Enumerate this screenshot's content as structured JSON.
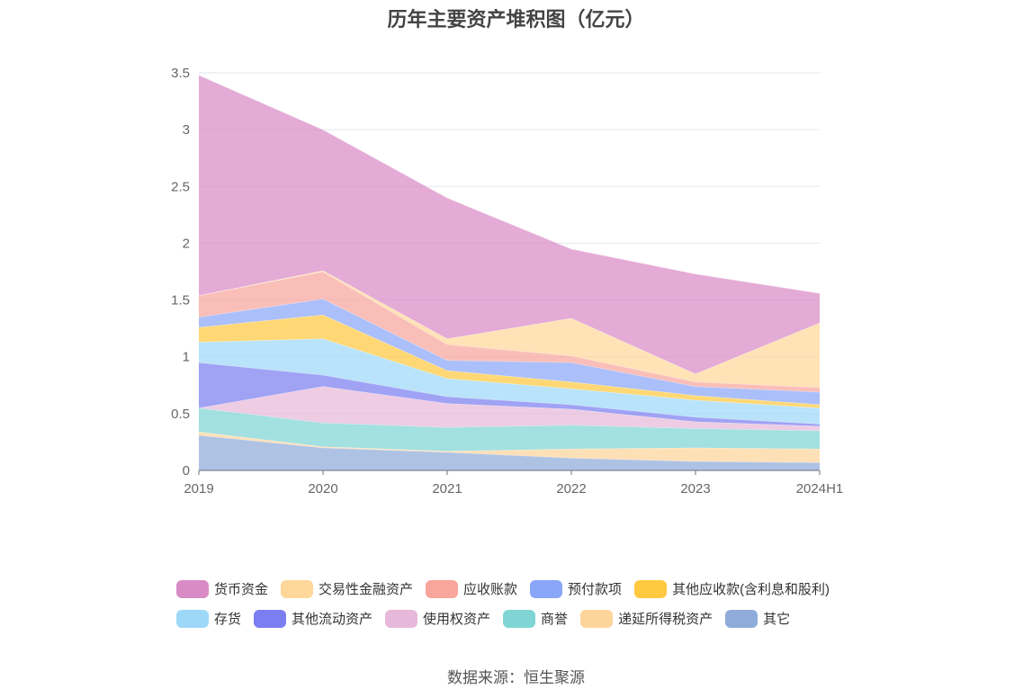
{
  "chart_data": {
    "type": "area",
    "stacked": true,
    "title": "历年主要资产堆积图（亿元）",
    "categories": [
      "2019",
      "2020",
      "2021",
      "2022",
      "2023",
      "2024H1"
    ],
    "ylim": [
      0,
      3.5
    ],
    "yticks": [
      "0",
      "0.5",
      "1",
      "1.5",
      "2",
      "2.5",
      "3",
      "3.5"
    ],
    "grid": true,
    "legend_position": "bottom",
    "series": [
      {
        "name": "其它",
        "color": "#8fabd9",
        "values": [
          0.31,
          0.2,
          0.16,
          0.11,
          0.08,
          0.07
        ]
      },
      {
        "name": "递延所得税资产",
        "color": "#fdd49a",
        "values": [
          0.03,
          0.01,
          0.01,
          0.08,
          0.12,
          0.12
        ]
      },
      {
        "name": "商誉",
        "color": "#7fd4d4",
        "values": [
          0.21,
          0.21,
          0.21,
          0.21,
          0.17,
          0.16
        ]
      },
      {
        "name": "使用权资产",
        "color": "#e6b9da",
        "values": [
          0.0,
          0.32,
          0.21,
          0.14,
          0.06,
          0.04
        ]
      },
      {
        "name": "其他流动资产",
        "color": "#7b7ef0",
        "values": [
          0.4,
          0.1,
          0.06,
          0.04,
          0.04,
          0.02
        ]
      },
      {
        "name": "存货",
        "color": "#9ed8f8",
        "values": [
          0.18,
          0.32,
          0.16,
          0.14,
          0.15,
          0.14
        ]
      },
      {
        "name": "其他应收款(含利息和股利)",
        "color": "#ffc940",
        "values": [
          0.13,
          0.21,
          0.07,
          0.06,
          0.04,
          0.03
        ]
      },
      {
        "name": "预付款项",
        "color": "#8aa6f8",
        "values": [
          0.09,
          0.14,
          0.09,
          0.17,
          0.08,
          0.11
        ]
      },
      {
        "name": "应收账款",
        "color": "#f8a59c",
        "values": [
          0.19,
          0.24,
          0.14,
          0.06,
          0.04,
          0.04
        ]
      },
      {
        "name": "交易性金融资产",
        "color": "#ffd79a",
        "values": [
          0.0,
          0.01,
          0.05,
          0.33,
          0.07,
          0.57
        ]
      },
      {
        "name": "货币资金",
        "color": "#d98bc6",
        "values": [
          1.94,
          1.24,
          1.24,
          0.61,
          0.88,
          0.26
        ]
      }
    ]
  },
  "legend": {
    "row1": [
      "货币资金",
      "交易性金融资产",
      "应收账款",
      "预付款项",
      "其他应收款(含利息和股利)"
    ],
    "row2": [
      "存货",
      "其他流动资产",
      "使用权资产",
      "商誉",
      "递延所得税资产",
      "其它"
    ],
    "colors": {
      "货币资金": "#d98bc6",
      "交易性金融资产": "#ffd79a",
      "应收账款": "#f8a59c",
      "预付款项": "#8aa6f8",
      "其他应收款(含利息和股利)": "#ffc940",
      "存货": "#9ed8f8",
      "其他流动资产": "#7b7ef0",
      "使用权资产": "#e6b9da",
      "商誉": "#7fd4d4",
      "递延所得税资产": "#fdd49a",
      "其它": "#8fabd9"
    }
  },
  "source": "数据来源：恒生聚源"
}
